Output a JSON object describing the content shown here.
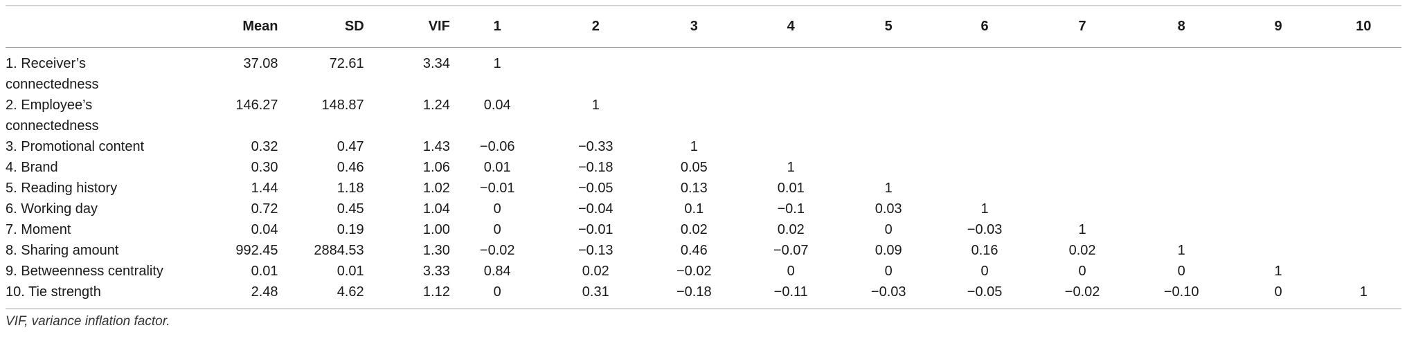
{
  "table": {
    "columns": [
      "",
      "Mean",
      "SD",
      "VIF",
      "1",
      "2",
      "3",
      "4",
      "5",
      "6",
      "7",
      "8",
      "9",
      "10"
    ],
    "rows": [
      {
        "label": "1. Receiver’s connectedness",
        "label_lines": [
          "1. Receiver’s",
          "connectedness"
        ],
        "mean": "37.08",
        "sd": "72.61",
        "vif": "3.34",
        "corr": [
          "1",
          "",
          "",
          "",
          "",
          "",
          "",
          "",
          "",
          ""
        ]
      },
      {
        "label": "2. Employee’s connectedness",
        "label_lines": [
          "2. Employee’s",
          "connectedness"
        ],
        "mean": "146.27",
        "sd": "148.87",
        "vif": "1.24",
        "corr": [
          "0.04",
          "1",
          "",
          "",
          "",
          "",
          "",
          "",
          "",
          ""
        ]
      },
      {
        "label": "3. Promotional content",
        "label_lines": [
          "3. Promotional content"
        ],
        "mean": "0.32",
        "sd": "0.47",
        "vif": "1.43",
        "corr": [
          "−0.06",
          "−0.33",
          "1",
          "",
          "",
          "",
          "",
          "",
          "",
          ""
        ]
      },
      {
        "label": "4. Brand",
        "label_lines": [
          "4. Brand"
        ],
        "mean": "0.30",
        "sd": "0.46",
        "vif": "1.06",
        "corr": [
          "0.01",
          "−0.18",
          "0.05",
          "1",
          "",
          "",
          "",
          "",
          "",
          ""
        ]
      },
      {
        "label": "5. Reading history",
        "label_lines": [
          "5. Reading history"
        ],
        "mean": "1.44",
        "sd": "1.18",
        "vif": "1.02",
        "corr": [
          "−0.01",
          "−0.05",
          "0.13",
          "0.01",
          "1",
          "",
          "",
          "",
          "",
          ""
        ]
      },
      {
        "label": "6. Working day",
        "label_lines": [
          "6. Working day"
        ],
        "mean": "0.72",
        "sd": "0.45",
        "vif": "1.04",
        "corr": [
          "0",
          "−0.04",
          "0.1",
          "−0.1",
          "0.03",
          "1",
          "",
          "",
          "",
          ""
        ]
      },
      {
        "label": "7. Moment",
        "label_lines": [
          "7. Moment"
        ],
        "mean": "0.04",
        "sd": "0.19",
        "vif": "1.00",
        "corr": [
          "0",
          "−0.01",
          "0.02",
          "0.02",
          "0",
          "−0.03",
          "1",
          "",
          "",
          ""
        ]
      },
      {
        "label": "8. Sharing amount",
        "label_lines": [
          "8. Sharing amount"
        ],
        "mean": "992.45",
        "sd": "2884.53",
        "vif": "1.30",
        "corr": [
          "−0.02",
          "−0.13",
          "0.46",
          "−0.07",
          "0.09",
          "0.16",
          "0.02",
          "1",
          "",
          ""
        ]
      },
      {
        "label": "9. Betweenness centrality",
        "label_lines": [
          "9. Betweenness centrality"
        ],
        "mean": "0.01",
        "sd": "0.01",
        "vif": "3.33",
        "corr": [
          "0.84",
          "0.02",
          "−0.02",
          "0",
          "0",
          "0",
          "0",
          "0",
          "1",
          ""
        ]
      },
      {
        "label": "10. Tie strength",
        "label_lines": [
          "10. Tie strength"
        ],
        "mean": "2.48",
        "sd": "4.62",
        "vif": "1.12",
        "corr": [
          "0",
          "0.31",
          "−0.18",
          "−0.11",
          "−0.03",
          "−0.05",
          "−0.02",
          "−0.10",
          "0",
          "1"
        ]
      }
    ],
    "footnote": "VIF, variance inflation factor."
  }
}
